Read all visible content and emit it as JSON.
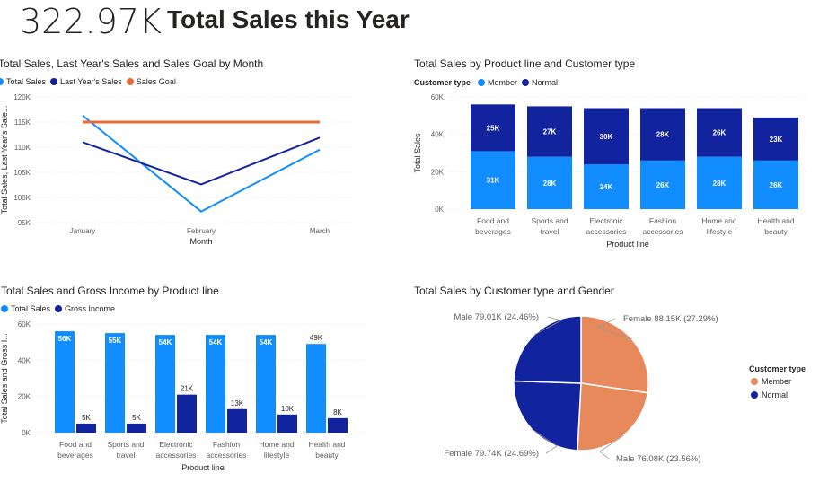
{
  "header": {
    "kpi_value": "322.97K",
    "title": "Total Sales this Year"
  },
  "colors": {
    "total_sales": "#118DFF",
    "dark_blue": "#12239E",
    "goal": "#E66C37",
    "female_pie": "#E8895C",
    "grid": "#E8E8E8",
    "text": "#605E5C"
  },
  "chart_data": [
    {
      "id": "monthly",
      "type": "line",
      "title": "Total Sales, Last Year's Sales and Sales Goal by Month",
      "xlabel": "Month",
      "ylabel": "Total Sales, Last Year's Sale...",
      "x": [
        "January",
        "February",
        "March"
      ],
      "ylim": [
        95000,
        120000
      ],
      "yticks": [
        95000,
        100000,
        105000,
        110000,
        115000,
        120000
      ],
      "ytick_labels": [
        "95K",
        "100K",
        "105K",
        "110K",
        "115K",
        "120K"
      ],
      "legend_position": "top-left",
      "series": [
        {
          "name": "Total Sales",
          "values": [
            116300,
            97200,
            109500
          ]
        },
        {
          "name": "Last Year's Sales",
          "values": [
            111000,
            102600,
            111900
          ]
        },
        {
          "name": "Sales Goal",
          "values": [
            115000,
            115000,
            115000
          ]
        }
      ]
    },
    {
      "id": "product_customer",
      "type": "bar",
      "stacked": true,
      "title": "Total Sales by Product line and Customer type",
      "xlabel": "Product line",
      "ylabel": "Total Sales",
      "legend_title": "Customer type",
      "categories": [
        [
          "Food and",
          "beverages"
        ],
        [
          "Sports and",
          "travel"
        ],
        [
          "Electronic",
          "accessories"
        ],
        [
          "Fashion",
          "accessories"
        ],
        [
          "Home and",
          "lifestyle"
        ],
        [
          "Health and",
          "beauty"
        ]
      ],
      "ylim": [
        0,
        60000
      ],
      "yticks": [
        0,
        20000,
        40000,
        60000
      ],
      "ytick_labels": [
        "0K",
        "20K",
        "40K",
        "60K"
      ],
      "series": [
        {
          "name": "Member",
          "values": [
            31000,
            28000,
            24000,
            26000,
            28000,
            26000
          ],
          "labels": [
            "31K",
            "28K",
            "24K",
            "26K",
            "28K",
            "26K"
          ]
        },
        {
          "name": "Normal",
          "values": [
            25000,
            27000,
            30000,
            28000,
            26000,
            23000
          ],
          "labels": [
            "25K",
            "27K",
            "30K",
            "28K",
            "26K",
            "23K"
          ]
        }
      ]
    },
    {
      "id": "sales_income",
      "type": "bar",
      "stacked": false,
      "title": "Total Sales and Gross Income by Product line",
      "xlabel": "Product line",
      "ylabel": "Total Sales and Gross I...",
      "categories": [
        [
          "Food and",
          "beverages"
        ],
        [
          "Sports and",
          "travel"
        ],
        [
          "Electronic",
          "accessories"
        ],
        [
          "Fashion",
          "accessories"
        ],
        [
          "Home and",
          "lifestyle"
        ],
        [
          "Health and",
          "beauty"
        ]
      ],
      "ylim": [
        0,
        60000
      ],
      "yticks": [
        0,
        20000,
        40000,
        60000
      ],
      "ytick_labels": [
        "0K",
        "20K",
        "40K",
        "60K"
      ],
      "series": [
        {
          "name": "Total Sales",
          "values": [
            56000,
            55000,
            54000,
            54000,
            54000,
            49000
          ],
          "labels": [
            "56K",
            "55K",
            "54K",
            "54K",
            "54K",
            "49K"
          ]
        },
        {
          "name": "Gross Income",
          "values": [
            5000,
            5000,
            21000,
            13000,
            10000,
            8000
          ],
          "labels": [
            "5K",
            "5K",
            "21K",
            "13K",
            "10K",
            "8K"
          ]
        }
      ]
    },
    {
      "id": "customer_gender",
      "type": "pie",
      "title": "Total Sales by Customer type and Gender",
      "legend_title": "Customer type",
      "legend": [
        "Member",
        "Normal"
      ],
      "slices": [
        {
          "label": "Female 88.15K (27.29%)",
          "group": "Member",
          "gender": "Female",
          "value": 88150
        },
        {
          "label": "Male 76.08K (23.56%)",
          "group": "Member",
          "gender": "Male",
          "value": 76080
        },
        {
          "label": "Female 79.74K (24.69%)",
          "group": "Normal",
          "gender": "Female",
          "value": 79740
        },
        {
          "label": "Male 79.01K (24.46%)",
          "group": "Normal",
          "gender": "Male",
          "value": 79010
        }
      ]
    }
  ]
}
